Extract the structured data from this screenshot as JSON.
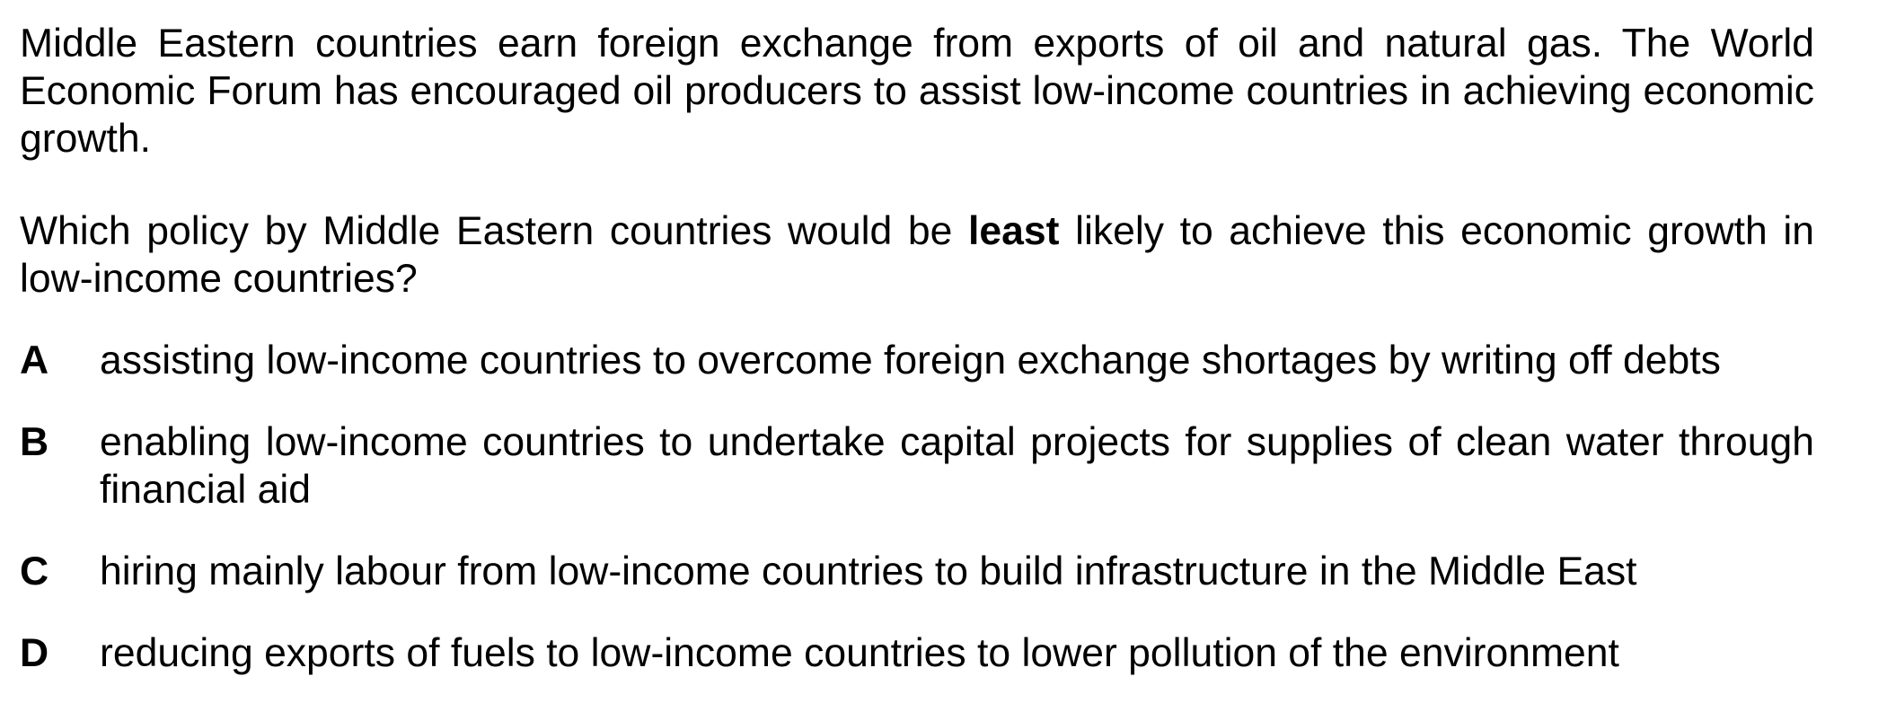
{
  "stem": "Middle Eastern countries earn foreign exchange from exports of oil and natural gas. The World Economic Forum has encouraged oil producers to assist low-income countries in achieving economic growth.",
  "question": {
    "before": "Which policy by Middle Eastern countries would be ",
    "emphasis": "least",
    "after": " likely to achieve this economic growth in low-income countries?"
  },
  "options": [
    {
      "letter": "A",
      "text": "assisting low-income countries to overcome foreign exchange shortages by writing off debts"
    },
    {
      "letter": "B",
      "text": "enabling low-income countries to undertake capital projects for supplies of clean water through financial aid"
    },
    {
      "letter": "C",
      "text": "hiring mainly labour from low-income countries to build infrastructure in the Middle East"
    },
    {
      "letter": "D",
      "text": "reducing exports of fuels to low-income countries to lower pollution of the environment"
    }
  ]
}
